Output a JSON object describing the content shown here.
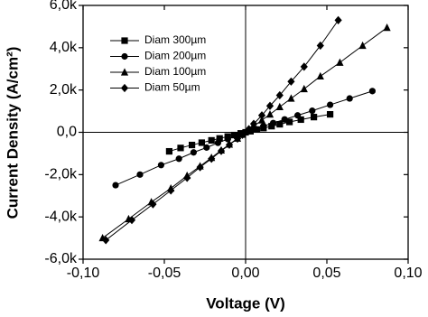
{
  "chart_data": {
    "type": "line",
    "x_label": "Voltage (V)",
    "y_label": "Current Density (A/cm²)",
    "xlim": [
      -0.1,
      0.1
    ],
    "ylim": [
      -6000,
      6000
    ],
    "xticks": [
      {
        "value": -0.1,
        "label": "-0,10"
      },
      {
        "value": -0.05,
        "label": "-0,05"
      },
      {
        "value": 0,
        "label": "0,00"
      },
      {
        "value": 0.05,
        "label": "0,05"
      },
      {
        "value": 0.1,
        "label": "0,10"
      }
    ],
    "yticks": [
      {
        "value": -6000,
        "label": "-6,0k"
      },
      {
        "value": -4000,
        "label": "-4,0k"
      },
      {
        "value": -2000,
        "label": "-2,0k"
      },
      {
        "value": 0,
        "label": "0,0"
      },
      {
        "value": 2000,
        "label": "2,0k"
      },
      {
        "value": 4000,
        "label": "4,0k"
      },
      {
        "value": 6000,
        "label": "6,0k"
      }
    ],
    "series": [
      {
        "name": "Diam 300µm",
        "color": "#000000",
        "marker": "square",
        "x": [
          -0.047,
          -0.04,
          -0.033,
          -0.027,
          -0.021,
          -0.016,
          -0.011,
          -0.007,
          -0.003,
          0.0,
          0.003,
          0.007,
          0.011,
          0.016,
          0.021,
          0.027,
          0.034,
          0.042,
          0.052
        ],
        "values": [
          -900,
          -740,
          -600,
          -490,
          -380,
          -290,
          -200,
          -130,
          -50,
          0,
          50,
          130,
          200,
          290,
          380,
          490,
          600,
          720,
          850
        ]
      },
      {
        "name": "Diam 200µm",
        "color": "#000000",
        "marker": "circle",
        "x": [
          -0.08,
          -0.065,
          -0.052,
          -0.041,
          -0.032,
          -0.024,
          -0.017,
          -0.011,
          -0.006,
          -0.002,
          0.002,
          0.006,
          0.011,
          0.017,
          0.024,
          0.032,
          0.041,
          0.052,
          0.064,
          0.078
        ],
        "values": [
          -2500,
          -2000,
          -1550,
          -1250,
          -950,
          -720,
          -500,
          -320,
          -170,
          -60,
          50,
          160,
          290,
          440,
          610,
          800,
          1020,
          1300,
          1600,
          1950
        ]
      },
      {
        "name": "Diam 100µm",
        "color": "#000000",
        "marker": "triangle",
        "x": [
          -0.088,
          -0.072,
          -0.058,
          -0.046,
          -0.036,
          -0.028,
          -0.021,
          -0.015,
          -0.01,
          -0.005,
          -0.002,
          0.002,
          0.005,
          0.01,
          0.015,
          0.021,
          0.028,
          0.036,
          0.046,
          0.058,
          0.072,
          0.087
        ],
        "values": [
          -5000,
          -4100,
          -3300,
          -2650,
          -2050,
          -1600,
          -1200,
          -850,
          -570,
          -290,
          -110,
          110,
          290,
          570,
          850,
          1200,
          1600,
          2050,
          2650,
          3300,
          4100,
          4950
        ]
      },
      {
        "name": "Diam 50µm",
        "color": "#000000",
        "marker": "diamond",
        "x": [
          -0.086,
          -0.07,
          -0.057,
          -0.046,
          -0.036,
          -0.028,
          -0.021,
          -0.015,
          -0.01,
          -0.005,
          -0.002,
          0.002,
          0.005,
          0.01,
          0.015,
          0.021,
          0.028,
          0.036,
          0.046,
          0.057
        ],
        "values": [
          -5100,
          -4150,
          -3400,
          -2750,
          -2150,
          -1650,
          -1250,
          -880,
          -590,
          -300,
          -120,
          150,
          400,
          800,
          1250,
          1750,
          2400,
          3100,
          4100,
          5300
        ]
      }
    ],
    "legend": "upper-left"
  }
}
